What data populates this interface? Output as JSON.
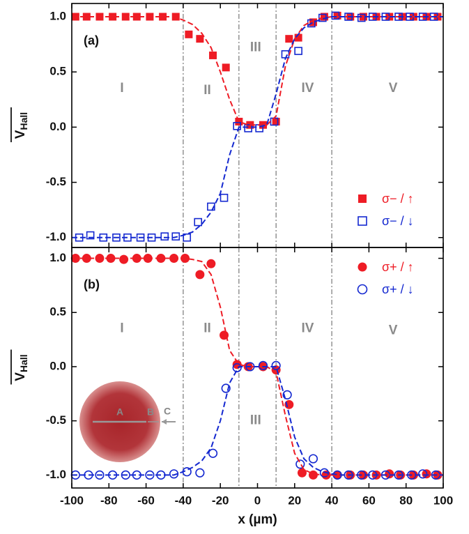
{
  "chart_data": [
    {
      "type": "scatter",
      "panel_label": "(a)",
      "xlim": [
        -100,
        100
      ],
      "xticks": [
        -100,
        -80,
        -60,
        -40,
        -20,
        0,
        20,
        40,
        60,
        80,
        100
      ],
      "show_xtick_labels": false,
      "ylim": [
        -1.09,
        1.12
      ],
      "yticks": [
        {
          "value": -1,
          "label": "-1.0"
        },
        -0.5,
        {
          "value": 0,
          "label": "0.0"
        },
        0.5,
        {
          "value": 1,
          "label": "1.0"
        }
      ],
      "ylabel": {
        "main": "V",
        "sub": "Hall"
      },
      "vlines": [
        -40,
        -10,
        10,
        40
      ],
      "regions": [
        {
          "text": "I",
          "x": -73,
          "y": 0.35
        },
        {
          "text": "II",
          "x": -27,
          "y": 0.33
        },
        {
          "text": "III",
          "x": -1,
          "y": 0.72
        },
        {
          "text": "IV",
          "x": 27,
          "y": 0.35
        },
        {
          "text": "V",
          "x": 73,
          "y": 0.35
        }
      ],
      "legend": "lower right",
      "series": [
        {
          "name": "σ− / ↑",
          "color": "#ee1c25",
          "marker": "square-filled",
          "x": [
            -98,
            -92,
            -85,
            -78,
            -71,
            -65,
            -58,
            -51,
            -44,
            -37,
            -31,
            -24,
            -17,
            -10,
            -4,
            3,
            10,
            17,
            22,
            30,
            36,
            43,
            50,
            57,
            64,
            71,
            78,
            84,
            91,
            97
          ],
          "values": [
            1.0,
            1.0,
            1.0,
            1.0,
            1.0,
            1.0,
            1.0,
            1.0,
            1.0,
            0.84,
            0.8,
            0.65,
            0.54,
            0.05,
            0.02,
            0.02,
            0.05,
            0.8,
            0.81,
            0.95,
            1.0,
            1.01,
            1.0,
            1.0,
            1.0,
            1.0,
            1.0,
            1.0,
            1.0,
            1.0
          ]
        },
        {
          "name": "σ− / ↓",
          "color": "#1428d0",
          "marker": "square-open",
          "x": [
            -96,
            -90,
            -83,
            -76,
            -70,
            -63,
            -57,
            -50,
            -44,
            -38,
            -32,
            -25,
            -18,
            -11,
            -5,
            1,
            9,
            15,
            22,
            29,
            35,
            42,
            49,
            56,
            62,
            69,
            76,
            82,
            89,
            95
          ],
          "values": [
            -1.0,
            -0.98,
            -1.0,
            -1.0,
            -1.0,
            -1.0,
            -1.0,
            -0.99,
            -0.99,
            -1.0,
            -0.86,
            -0.72,
            -0.64,
            0.01,
            -0.01,
            -0.01,
            0.05,
            0.66,
            0.69,
            0.94,
            0.99,
            1.01,
            1.0,
            0.99,
            1.0,
            1.0,
            1.0,
            1.0,
            1.0,
            1.0
          ]
        },
        {
          "color": "#ee1c25",
          "style": "dashed",
          "x": [
            -100,
            -95,
            -90,
            -85,
            -80,
            -75,
            -70,
            -65,
            -60,
            -55,
            -50,
            -45,
            -40,
            -35,
            -30,
            -25,
            -20,
            -15,
            -10,
            -5,
            0,
            5,
            10,
            15,
            20,
            25,
            30,
            35,
            40,
            45,
            50,
            55,
            60,
            65,
            70,
            75,
            80,
            85,
            90,
            95,
            100
          ],
          "values": [
            1.0,
            1.0,
            1.0,
            1.0,
            1.0,
            1.0,
            1.0,
            1.0,
            1.0,
            1.0,
            1.0,
            1.0,
            0.97,
            0.93,
            0.85,
            0.72,
            0.5,
            0.25,
            0.05,
            0.02,
            0.02,
            0.02,
            0.1,
            0.55,
            0.8,
            0.92,
            0.97,
            0.99,
            1.0,
            1.0,
            1.0,
            1.0,
            1.0,
            1.0,
            1.0,
            1.0,
            1.0,
            1.0,
            1.0,
            1.0,
            1.0
          ]
        },
        {
          "color": "#1428d0",
          "style": "dashed",
          "x": [
            -100,
            -95,
            -90,
            -85,
            -80,
            -75,
            -70,
            -65,
            -60,
            -55,
            -50,
            -45,
            -40,
            -35,
            -30,
            -25,
            -20,
            -15,
            -10,
            -5,
            0,
            5,
            10,
            15,
            20,
            25,
            30,
            35,
            40,
            45,
            50,
            55,
            60,
            65,
            70,
            75,
            80,
            85,
            90,
            95,
            100
          ],
          "values": [
            -1.0,
            -1.0,
            -1.0,
            -1.0,
            -1.0,
            -1.0,
            -1.0,
            -1.0,
            -1.0,
            -1.0,
            -1.0,
            -1.0,
            -0.98,
            -0.95,
            -0.88,
            -0.77,
            -0.6,
            -0.25,
            0.0,
            0.0,
            0.0,
            0.02,
            0.3,
            0.62,
            0.8,
            0.9,
            0.95,
            0.98,
            1.0,
            1.0,
            1.0,
            1.0,
            1.0,
            1.0,
            1.0,
            1.0,
            1.0,
            1.0,
            1.0,
            1.0,
            1.0
          ]
        }
      ]
    },
    {
      "type": "scatter",
      "panel_label": "(b)",
      "xlim": [
        -100,
        100
      ],
      "xticks": [
        -100,
        -80,
        -60,
        -40,
        -20,
        0,
        20,
        40,
        60,
        80,
        100
      ],
      "show_xtick_labels": true,
      "xlabel": "x (µm)",
      "ylim": [
        -1.12,
        1.1
      ],
      "yticks": [
        {
          "value": -1,
          "label": "-1.0"
        },
        -0.5,
        {
          "value": 0,
          "label": "0.0"
        },
        0.5,
        {
          "value": 1,
          "label": "1.0"
        }
      ],
      "ylabel": {
        "main": "V",
        "sub": "Hall"
      },
      "vlines": [
        -40,
        -10,
        10,
        40
      ],
      "regions": [
        {
          "text": "I",
          "x": -73,
          "y": 0.35
        },
        {
          "text": "II",
          "x": -27,
          "y": 0.35
        },
        {
          "text": "III",
          "x": -1,
          "y": -0.5
        },
        {
          "text": "IV",
          "x": 27,
          "y": 0.35
        },
        {
          "text": "V",
          "x": 73,
          "y": 0.33
        }
      ],
      "legend": "upper right",
      "inset_labels": [
        "A",
        "B",
        "C"
      ],
      "series": [
        {
          "name": "σ+ / ↑",
          "color": "#ee1c25",
          "marker": "circle-filled",
          "x": [
            -98,
            -92,
            -85,
            -79,
            -72,
            -65,
            -59,
            -52,
            -45,
            -39,
            -31,
            -25,
            -18,
            -11,
            -5,
            3,
            10,
            17,
            24,
            30,
            37,
            43,
            50,
            57,
            64,
            71,
            77,
            84,
            91,
            97
          ],
          "values": [
            1.0,
            1.0,
            1.0,
            1.0,
            0.99,
            1.0,
            1.0,
            1.0,
            1.0,
            1.0,
            0.85,
            0.95,
            0.29,
            0.02,
            0.0,
            0.0,
            -0.03,
            -0.35,
            -0.98,
            -1.0,
            -1.0,
            -1.0,
            -1.0,
            -1.0,
            -1.0,
            -0.99,
            -1.0,
            -1.0,
            -0.99,
            -1.0
          ]
        },
        {
          "name": "σ+ / ↓",
          "color": "#1428d0",
          "marker": "circle-open",
          "x": [
            -98,
            -91,
            -85,
            -78,
            -71,
            -65,
            -58,
            -52,
            -45,
            -38,
            -31,
            -24,
            -17,
            -11,
            -4,
            3,
            10,
            16,
            23,
            30,
            36,
            43,
            49,
            56,
            62,
            69,
            76,
            83,
            89,
            96
          ],
          "values": [
            -1.0,
            -1.0,
            -1.0,
            -1.0,
            -1.0,
            -1.0,
            -1.0,
            -1.0,
            -0.99,
            -0.97,
            -0.98,
            -0.8,
            -0.2,
            -0.01,
            0.0,
            0.01,
            0.01,
            -0.26,
            -0.9,
            -0.85,
            -0.98,
            -1.0,
            -1.0,
            -1.0,
            -1.0,
            -1.0,
            -1.0,
            -1.0,
            -0.99,
            -1.0
          ]
        },
        {
          "color": "#ee1c25",
          "style": "dashed",
          "x": [
            -100,
            -95,
            -90,
            -85,
            -80,
            -75,
            -70,
            -65,
            -60,
            -55,
            -50,
            -45,
            -40,
            -35,
            -30,
            -25,
            -20,
            -15,
            -10,
            -5,
            0,
            5,
            10,
            15,
            20,
            25,
            30,
            35,
            40,
            45,
            50,
            55,
            60,
            65,
            70,
            75,
            80,
            85,
            90,
            95,
            100
          ],
          "values": [
            1.0,
            1.0,
            1.0,
            1.0,
            1.0,
            1.0,
            1.0,
            1.0,
            1.0,
            1.0,
            1.0,
            1.0,
            1.0,
            0.99,
            0.97,
            0.85,
            0.55,
            0.15,
            0.02,
            0.0,
            0.0,
            0.0,
            -0.05,
            -0.45,
            -0.8,
            -0.95,
            -0.99,
            -1.0,
            -1.0,
            -1.0,
            -1.0,
            -1.0,
            -1.0,
            -1.0,
            -1.0,
            -1.0,
            -1.0,
            -1.0,
            -1.0,
            -1.0,
            -1.0
          ]
        },
        {
          "color": "#1428d0",
          "style": "dashed",
          "x": [
            -100,
            -95,
            -90,
            -85,
            -80,
            -75,
            -70,
            -65,
            -60,
            -55,
            -50,
            -45,
            -40,
            -35,
            -30,
            -25,
            -20,
            -15,
            -10,
            -5,
            0,
            5,
            10,
            15,
            20,
            25,
            30,
            35,
            40,
            45,
            50,
            55,
            60,
            65,
            70,
            75,
            80,
            85,
            90,
            95,
            100
          ],
          "values": [
            -1.0,
            -1.0,
            -1.0,
            -1.0,
            -1.0,
            -1.0,
            -1.0,
            -1.0,
            -1.0,
            -1.0,
            -1.0,
            -1.0,
            -0.97,
            -0.93,
            -0.87,
            -0.75,
            -0.5,
            -0.15,
            0.0,
            0.0,
            0.0,
            0.0,
            0.0,
            -0.3,
            -0.65,
            -0.85,
            -0.93,
            -0.97,
            -0.99,
            -1.0,
            -1.0,
            -1.0,
            -1.0,
            -1.0,
            -1.0,
            -1.0,
            -1.0,
            -1.0,
            -1.0,
            -1.0,
            -1.0
          ]
        }
      ]
    }
  ]
}
